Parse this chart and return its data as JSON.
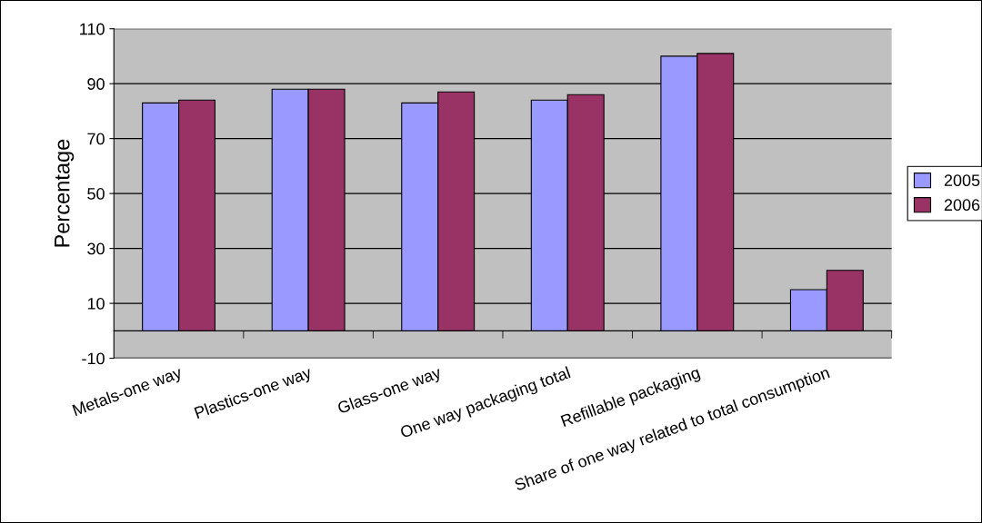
{
  "chart_data": {
    "type": "bar",
    "ylabel": "Percentage",
    "categories": [
      "Metals-one way",
      "Plastics-one way",
      "Glass-one way",
      "One way packaging total",
      "Refillable packaging",
      "Share of one way related to total consumption"
    ],
    "series": [
      {
        "name": "2005",
        "color": "#9999ff",
        "values": [
          83,
          88,
          83,
          84,
          100,
          15
        ]
      },
      {
        "name": "2006",
        "color": "#993366",
        "values": [
          84,
          88,
          87,
          86,
          101,
          22
        ]
      }
    ],
    "ylim": [
      -10,
      110
    ],
    "yticks": [
      -10,
      10,
      30,
      50,
      70,
      90,
      110
    ],
    "grid": "y",
    "legend": "right"
  }
}
